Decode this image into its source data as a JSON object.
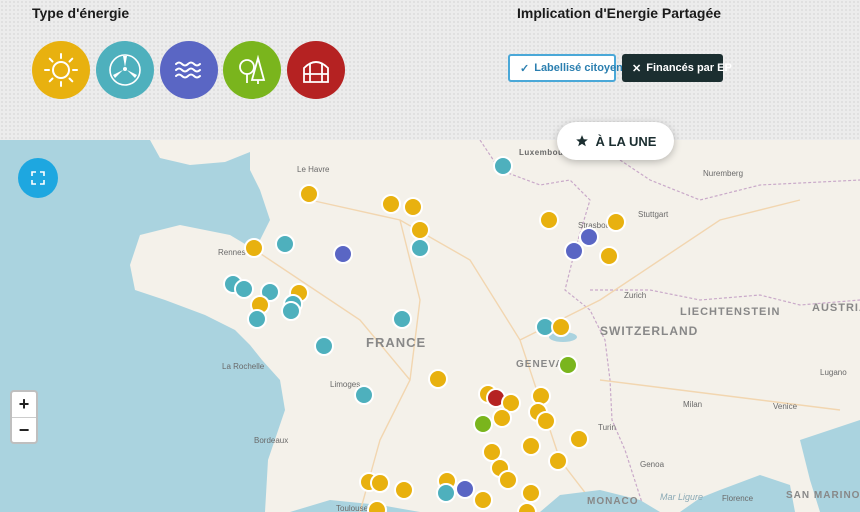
{
  "filters": {
    "energy_title": "Type d'énergie",
    "involvement_title": "Implication d'Energie Partagée",
    "energy_types": [
      {
        "icon": "sun-icon",
        "color": "#e8b10f"
      },
      {
        "icon": "wind-turbine-icon",
        "color": "#4eb0bd"
      },
      {
        "icon": "water-waves-icon",
        "color": "#5a66c4"
      },
      {
        "icon": "forest-icon",
        "color": "#7ab51d"
      },
      {
        "icon": "greenhouse-icon",
        "color": "#b52222"
      }
    ],
    "labellise_label": "Labellisé citoyen",
    "finances_label": "Financés par EP"
  },
  "featured_label": "À LA UNE",
  "zoom": {
    "in_label": "+",
    "out_label": "−"
  },
  "map_labels": {
    "le_havre": "Le Havre",
    "luxembourg": "Luxembourg",
    "nuremberg": "Nuremberg",
    "stuttgart": "Stuttgart",
    "strasbourg": "Strasbourg",
    "rennes": "Rennes",
    "zurich": "Zurich",
    "liechtenstein": "LIECHTENSTEIN",
    "switzerland": "SWITZERLAND",
    "austria": "AUSTRIA",
    "france": "FRANCE",
    "geneva": "GENEVA",
    "la_rochelle": "La Rochelle",
    "limoges": "Limoges",
    "lugano": "Lugano",
    "milan": "Milan",
    "venice": "Venice",
    "bordeaux": "Bordeaux",
    "turin": "Turin",
    "genoa": "Genoa",
    "toulouse": "Toulouse",
    "monaco": "MONACO",
    "mar_ligure": "Mar Ligure",
    "florence": "Florence",
    "san_marino": "SAN MARINO"
  },
  "colors": {
    "solar": "#e8b10f",
    "wind": "#4eb0bd",
    "hydro": "#5a66c4",
    "biomass": "#7ab51d",
    "methane": "#b52222"
  }
}
